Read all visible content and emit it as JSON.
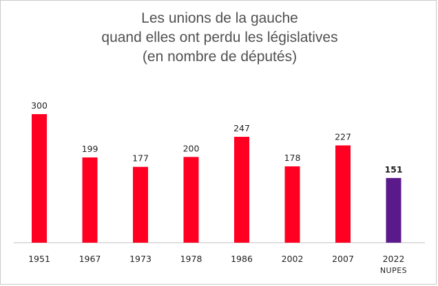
{
  "chart_data": {
    "type": "bar",
    "title_lines": [
      "Les unions de la gauche",
      "quand elles ont perdu les législatives",
      "(en nombre de députés)"
    ],
    "categories": [
      "1951",
      "1967",
      "1973",
      "1978",
      "1986",
      "2002",
      "2007",
      "2022"
    ],
    "category_sublabels": [
      "",
      "",
      "",
      "",
      "",
      "",
      "",
      "NUPES"
    ],
    "values": [
      300,
      199,
      177,
      200,
      247,
      178,
      227,
      151
    ],
    "bar_colors": [
      "#ff0022",
      "#ff0022",
      "#ff0022",
      "#ff0022",
      "#ff0022",
      "#ff0022",
      "#ff0022",
      "#5b1a8c"
    ],
    "bold_labels": [
      false,
      false,
      false,
      false,
      false,
      false,
      false,
      true
    ],
    "ylim": [
      0,
      310
    ],
    "grid": false,
    "legend": "none"
  }
}
